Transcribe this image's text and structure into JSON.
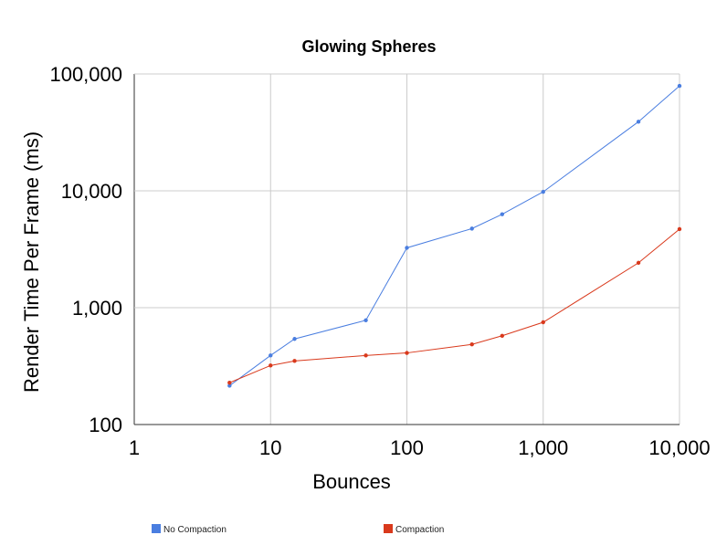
{
  "chart_data": {
    "type": "line",
    "title": "Glowing Spheres",
    "xlabel": "Bounces",
    "ylabel": "Render Time Per Frame (ms)",
    "x_scale": "log",
    "y_scale": "log",
    "xlim": [
      1,
      10000
    ],
    "ylim": [
      100,
      100000
    ],
    "x_ticks": [
      1,
      10,
      100,
      1000,
      10000
    ],
    "x_tick_labels": [
      "1",
      "10",
      "100",
      "1,000",
      "10,000"
    ],
    "y_ticks": [
      100,
      1000,
      10000,
      100000
    ],
    "y_tick_labels": [
      "100",
      "1,000",
      "10,000",
      "100,000"
    ],
    "grid": true,
    "legend_position": "bottom",
    "series": [
      {
        "name": "No Compaction",
        "color": "#4a7ee0",
        "x": [
          5,
          10,
          15,
          50,
          100,
          300,
          500,
          1000,
          5000,
          10000
        ],
        "y": [
          215,
          390,
          540,
          780,
          3250,
          4750,
          6300,
          9800,
          39000,
          79000
        ]
      },
      {
        "name": "Compaction",
        "color": "#d9391c",
        "x": [
          5,
          10,
          15,
          50,
          100,
          300,
          500,
          1000,
          5000,
          10000
        ],
        "y": [
          228,
          320,
          350,
          390,
          410,
          485,
          575,
          750,
          2420,
          4700
        ]
      }
    ]
  }
}
